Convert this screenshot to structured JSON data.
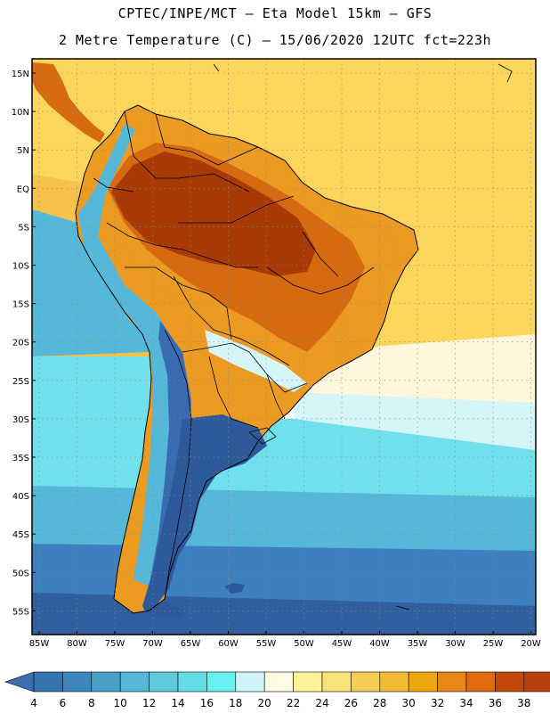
{
  "title": {
    "line1": "CPTEC/INPE/MCT –  Eta Model 15km – GFS",
    "line2": "2 Metre Temperature (C) – 15/06/2020 12UTC fct=223h"
  },
  "axes": {
    "lat_labels": [
      "15N",
      "10N",
      "5N",
      "EQ",
      "5S",
      "10S",
      "15S",
      "20S",
      "25S",
      "30S",
      "35S",
      "40S",
      "45S",
      "50S",
      "55S"
    ],
    "lon_labels": [
      "85W",
      "80W",
      "75W",
      "70W",
      "65W",
      "60W",
      "55W",
      "50W",
      "45W",
      "40W",
      "35W",
      "30W",
      "25W",
      "20W"
    ]
  },
  "colorbar": {
    "labels": [
      "4",
      "6",
      "8",
      "10",
      "12",
      "14",
      "16",
      "18",
      "20",
      "22",
      "24",
      "26",
      "28",
      "30",
      "32",
      "34",
      "36",
      "38"
    ],
    "low_color": "#3a6fb0",
    "high_color": "#b84010",
    "colors": [
      "#3576b0",
      "#3d86bd",
      "#48a0c9",
      "#54b8d6",
      "#5ecadc",
      "#64dce6",
      "#66f0f0",
      "#cff4fa",
      "#fffbe6",
      "#fff39a",
      "#fae27a",
      "#f5cf55",
      "#f0bb32",
      "#eca60f",
      "#e68718",
      "#e06a0c",
      "#c24708",
      "#b84010"
    ]
  },
  "palette": {
    "ocean_south_deep": "#2f5f9e",
    "ocean_south": "#3d7fbf",
    "ocean_mid": "#56b8d8",
    "ocean_cyan": "#70e0ec",
    "ocean_light": "#d5f5f8",
    "ocean_cream": "#fff6dc",
    "ocean_tropic": "#fcd65a",
    "ocean_warm": "#f6c24a",
    "land_hot": "#a83a06",
    "land_warm": "#d66a10",
    "land_mid": "#eb9a22",
    "land_andes_high": "#3a6bb0",
    "land_andes_mid": "#56b8d8",
    "land_south": "#2e5a9c",
    "line_color": "#000000",
    "grid_color": "#888888"
  }
}
